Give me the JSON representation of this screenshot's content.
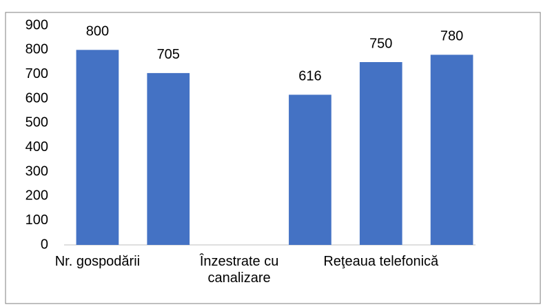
{
  "chart_data": {
    "type": "bar",
    "categories": [
      "Nr. gospodării",
      null,
      "Înzestrate cu canalizare",
      null,
      "Reţeaua telefonică",
      null
    ],
    "values": [
      800,
      705,
      null,
      616,
      750,
      780
    ],
    "color": "#4472c4",
    "ylim": [
      0,
      900
    ],
    "yticks": [
      0,
      100,
      200,
      300,
      400,
      500,
      600,
      700,
      800,
      900
    ],
    "grid": false
  }
}
